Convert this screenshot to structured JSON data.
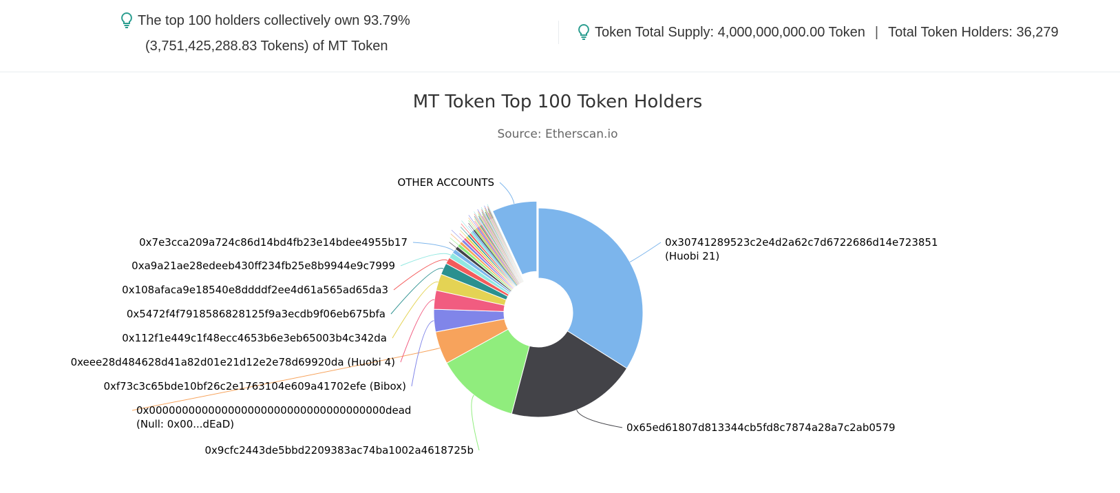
{
  "summary": {
    "left_line1": "The top 100 holders collectively own 93.79%",
    "left_line2": "(3,751,425,288.83 Tokens) of MT Token",
    "total_supply": "Token Total Supply: 4,000,000,000.00 Token",
    "separator": "|",
    "total_holders": "Total Token Holders: 36,279",
    "icon_color": "#2a9d8f"
  },
  "chart_data": {
    "type": "pie",
    "title": "MT Token Top 100 Token Holders",
    "subtitle": "Source: Etherscan.io",
    "slices": [
      {
        "label": "0x30741289523c2e4d2a62c7d6722686d14e723851 (Huobi 21)",
        "value": 30.3,
        "color": "#7cb5ec"
      },
      {
        "label": "0x65ed61807d813344cb5fd8c7874a28a7c2ab0579",
        "value": 18.0,
        "color": "#434348"
      },
      {
        "label": "0x9cfc2443de5bbd2209383ac74ba1002a4618725b",
        "value": 11.5,
        "color": "#90ed7d"
      },
      {
        "label": "0x000000000000000000000000000000000000dead (Null: 0x00...dEaD)",
        "value": 4.5,
        "color": "#f7a35c"
      },
      {
        "label": "0xf73c3c65bde10bf26c2e1763104e609a41702efe (Bibox)",
        "value": 3.1,
        "color": "#8085e9"
      },
      {
        "label": "0xeee28d484628d41a82d01e21d12e2e78d69920da (Huobi 4)",
        "value": 2.6,
        "color": "#f15c80"
      },
      {
        "label": "0x112f1e449c1f48ecc4653b6e3eb65003b4c342da",
        "value": 2.3,
        "color": "#e4d354"
      },
      {
        "label": "0x5472f4f7918586828125f9a3ecdb9f06eb675bfa",
        "value": 1.6,
        "color": "#2b908f"
      },
      {
        "label": "0x108afaca9e18540e8ddddf2ee4d61a565ad65da3",
        "value": 0.9,
        "color": "#f45b5b"
      },
      {
        "label": "0xa9a21ae28edeeb430ff234fb25e8b9944e9c7999",
        "value": 0.8,
        "color": "#91e8e1"
      },
      {
        "label": "0x7e3cca209a724c86d14bd4fb23e14bdee4955b17",
        "value": 0.6,
        "color": "#7cb5ec"
      },
      {
        "label": "",
        "value": 0.5,
        "color": "#434348"
      },
      {
        "label": "",
        "value": 0.45,
        "color": "#90ed7d"
      },
      {
        "label": "",
        "value": 0.4,
        "color": "#f7a35c"
      },
      {
        "label": "",
        "value": 0.4,
        "color": "#8085e9"
      },
      {
        "label": "",
        "value": 0.35,
        "color": "#f15c80"
      },
      {
        "label": "",
        "value": 0.35,
        "color": "#e4d354"
      },
      {
        "label": "",
        "value": 0.3,
        "color": "#2b908f"
      },
      {
        "label": "",
        "value": 0.3,
        "color": "#f45b5b"
      },
      {
        "label": "",
        "value": 0.25,
        "color": "#91e8e1"
      },
      {
        "label": "",
        "value": 0.25,
        "color": "#7cb5ec"
      },
      {
        "label": "",
        "value": 0.2,
        "color": "#434348"
      },
      {
        "label": "",
        "value": 0.2,
        "color": "#90ed7d"
      },
      {
        "label": "",
        "value": 0.2,
        "color": "#f7a35c"
      },
      {
        "label": "",
        "value": 0.2,
        "color": "#8085e9"
      },
      {
        "label": "",
        "value": 0.15,
        "color": "#f15c80"
      },
      {
        "label": "",
        "value": 0.15,
        "color": "#e4d354"
      },
      {
        "label": "",
        "value": 0.15,
        "color": "#2b908f"
      },
      {
        "label": "",
        "value": 0.15,
        "color": "#f45b5b"
      },
      {
        "label": "",
        "value": 0.1,
        "color": "#91e8e1"
      },
      {
        "label": "",
        "value": 0.1,
        "color": "#7cb5ec"
      },
      {
        "label": "",
        "value": 0.1,
        "color": "#434348"
      },
      {
        "label": "",
        "value": 0.1,
        "color": "#90ed7d"
      },
      {
        "label": "",
        "value": 0.1,
        "color": "#f7a35c"
      },
      {
        "label": "",
        "value": 0.1,
        "color": "#8085e9"
      },
      {
        "label": "",
        "value": 0.1,
        "color": "#f15c80"
      },
      {
        "label": "",
        "value": 0.1,
        "color": "#e4d354"
      },
      {
        "label": "",
        "value": 0.1,
        "color": "#2b908f"
      },
      {
        "label": "",
        "value": 0.1,
        "color": "#f45b5b"
      },
      {
        "label": "",
        "value": 0.1,
        "color": "#91e8e1"
      },
      {
        "label": "",
        "value": 0.08,
        "color": "#7cb5ec"
      },
      {
        "label": "",
        "value": 0.08,
        "color": "#434348"
      },
      {
        "label": "",
        "value": 0.08,
        "color": "#90ed7d"
      },
      {
        "label": "",
        "value": 0.08,
        "color": "#f7a35c"
      },
      {
        "label": "",
        "value": 0.08,
        "color": "#8085e9"
      },
      {
        "label": "",
        "value": 0.08,
        "color": "#f15c80"
      },
      {
        "label": "",
        "value": 0.08,
        "color": "#e4d354"
      },
      {
        "label": "",
        "value": 0.08,
        "color": "#2b908f"
      },
      {
        "label": "",
        "value": 0.08,
        "color": "#f45b5b"
      },
      {
        "label": "",
        "value": 0.08,
        "color": "#91e8e1"
      },
      {
        "label": "OTHER ACCOUNTS",
        "value": 6.21,
        "color": "#7cb5ec"
      }
    ],
    "legend": "none"
  }
}
